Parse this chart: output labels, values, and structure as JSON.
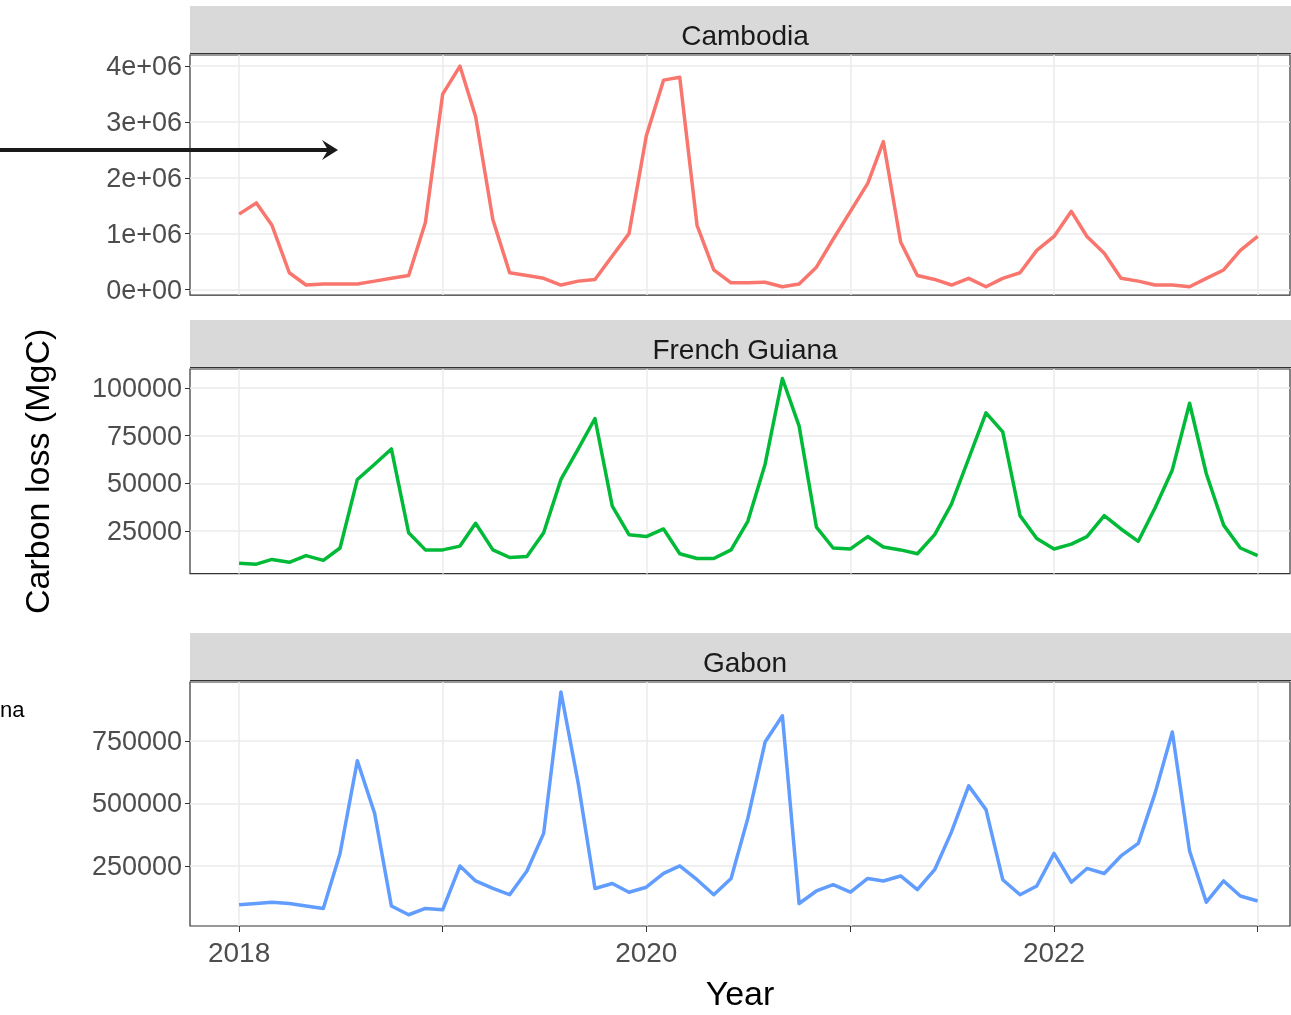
{
  "chart_data": [
    {
      "type": "line",
      "title": "Cambodia",
      "tick_labels": "y",
      "grid": true,
      "x": [
        "2018-01",
        "2018-02",
        "2018-03",
        "2018-04",
        "2018-05",
        "2018-06",
        "2018-07",
        "2018-08",
        "2018-09",
        "2018-10",
        "2018-11",
        "2018-12",
        "2019-01",
        "2019-02",
        "2019-03",
        "2019-04",
        "2019-05",
        "2019-06",
        "2019-07",
        "2019-08",
        "2019-09",
        "2019-10",
        "2019-11",
        "2019-12",
        "2020-01",
        "2020-02",
        "2020-03",
        "2020-04",
        "2020-05",
        "2020-06",
        "2020-07",
        "2020-08",
        "2020-09",
        "2020-10",
        "2020-11",
        "2020-12",
        "2021-01",
        "2021-02",
        "2021-03",
        "2021-04",
        "2021-05",
        "2021-06",
        "2021-07",
        "2021-08",
        "2021-09",
        "2021-10",
        "2021-11",
        "2021-12",
        "2022-01",
        "2022-02",
        "2022-03",
        "2022-04",
        "2022-05",
        "2022-06",
        "2022-07",
        "2022-08",
        "2022-09",
        "2022-10",
        "2022-11",
        "2022-12",
        "2023-01"
      ],
      "xlim": [
        "2017-10-05",
        "2023-02-28"
      ],
      "xticks": [
        {
          "value": "2018",
          "label": null
        },
        {
          "value": "2019",
          "label": null
        },
        {
          "value": "2020",
          "label": null
        },
        {
          "value": "2021",
          "label": null
        },
        {
          "value": "2022",
          "label": null
        },
        {
          "value": "2023",
          "label": null
        }
      ],
      "ylim": [
        -100000,
        4200000
      ],
      "yticks": [
        {
          "value": 0,
          "label": "0e+00"
        },
        {
          "value": 1000000,
          "label": "1e+06"
        },
        {
          "value": 2000000,
          "label": "2e+06"
        },
        {
          "value": 3000000,
          "label": "3e+06"
        },
        {
          "value": 4000000,
          "label": "4e+06"
        }
      ],
      "series": [
        {
          "color": "#f8766d",
          "values": [
            1350000,
            1550000,
            1150000,
            300000,
            80000,
            100000,
            100000,
            100000,
            150000,
            200000,
            250000,
            1200000,
            3500000,
            4000000,
            3100000,
            1250000,
            300000,
            250000,
            200000,
            80000,
            150000,
            180000,
            600000,
            1000000,
            2750000,
            3750000,
            3800000,
            1150000,
            350000,
            120000,
            120000,
            130000,
            50000,
            100000,
            400000,
            900000,
            1400000,
            1900000,
            2650000,
            850000,
            250000,
            180000,
            80000,
            200000,
            50000,
            200000,
            300000,
            700000,
            950000,
            1400000,
            950000,
            650000,
            200000,
            150000,
            80000,
            80000,
            50000,
            200000,
            350000,
            700000,
            950000
          ]
        }
      ]
    },
    {
      "type": "line",
      "title": "French Guiana",
      "ylabel": "Carbon loss (MgC)",
      "tick_labels": "y",
      "grid": true,
      "x": [
        "2018-01",
        "2018-02",
        "2018-03",
        "2018-04",
        "2018-05",
        "2018-06",
        "2018-07",
        "2018-08",
        "2018-09",
        "2018-10",
        "2018-11",
        "2018-12",
        "2019-01",
        "2019-02",
        "2019-03",
        "2019-04",
        "2019-05",
        "2019-06",
        "2019-07",
        "2019-08",
        "2019-09",
        "2019-10",
        "2019-11",
        "2019-12",
        "2020-01",
        "2020-02",
        "2020-03",
        "2020-04",
        "2020-05",
        "2020-06",
        "2020-07",
        "2020-08",
        "2020-09",
        "2020-10",
        "2020-11",
        "2020-12",
        "2021-01",
        "2021-02",
        "2021-03",
        "2021-04",
        "2021-05",
        "2021-06",
        "2021-07",
        "2021-08",
        "2021-09",
        "2021-10",
        "2021-11",
        "2021-12",
        "2022-01",
        "2022-02",
        "2022-03",
        "2022-04",
        "2022-05",
        "2022-06",
        "2022-07",
        "2022-08",
        "2022-09",
        "2022-10",
        "2022-11",
        "2022-12",
        "2023-01"
      ],
      "xlim": [
        "2017-10-05",
        "2023-02-28"
      ],
      "xticks": [
        {
          "value": "2018",
          "label": null
        },
        {
          "value": "2019",
          "label": null
        },
        {
          "value": "2020",
          "label": null
        },
        {
          "value": "2021",
          "label": null
        },
        {
          "value": "2022",
          "label": null
        },
        {
          "value": "2023",
          "label": null
        }
      ],
      "ylim": [
        2500,
        110000
      ],
      "yticks": [
        25000,
        50000,
        75000,
        100000
      ],
      "series": [
        {
          "color": "#00ba38",
          "values": [
            8000,
            7500,
            10000,
            8500,
            12000,
            9500,
            16000,
            52000,
            60000,
            68000,
            24000,
            15000,
            15000,
            17000,
            29000,
            15000,
            11000,
            11500,
            24000,
            52000,
            68000,
            84000,
            38000,
            23000,
            22000,
            26000,
            13000,
            10500,
            10500,
            15000,
            30000,
            60000,
            105000,
            80000,
            27000,
            16000,
            15500,
            22000,
            16500,
            15000,
            13000,
            23000,
            39000,
            63000,
            87000,
            77000,
            33000,
            21000,
            15500,
            18000,
            22000,
            33000,
            26000,
            19500,
            37000,
            57000,
            92000,
            55000,
            28000,
            16000,
            12000
          ]
        }
      ]
    },
    {
      "type": "line",
      "title": "Gabon",
      "xlabel": "Year",
      "grid": true,
      "annotations": [
        "na"
      ],
      "x": [
        "2018-01",
        "2018-02",
        "2018-03",
        "2018-04",
        "2018-05",
        "2018-06",
        "2018-07",
        "2018-08",
        "2018-09",
        "2018-10",
        "2018-11",
        "2018-12",
        "2019-01",
        "2019-02",
        "2019-03",
        "2019-04",
        "2019-05",
        "2019-06",
        "2019-07",
        "2019-08",
        "2019-09",
        "2019-10",
        "2019-11",
        "2019-12",
        "2020-01",
        "2020-02",
        "2020-03",
        "2020-04",
        "2020-05",
        "2020-06",
        "2020-07",
        "2020-08",
        "2020-09",
        "2020-10",
        "2020-11",
        "2020-12",
        "2021-01",
        "2021-02",
        "2021-03",
        "2021-04",
        "2021-05",
        "2021-06",
        "2021-07",
        "2021-08",
        "2021-09",
        "2021-10",
        "2021-11",
        "2021-12",
        "2022-01",
        "2022-02",
        "2022-03",
        "2022-04",
        "2022-05",
        "2022-06",
        "2022-07",
        "2022-08",
        "2022-09",
        "2022-10",
        "2022-11",
        "2022-12",
        "2023-01"
      ],
      "xlim": [
        "2017-10-05",
        "2023-02-28"
      ],
      "xticks": [
        {
          "value": "2018",
          "label": "2018"
        },
        {
          "value": "2019",
          "label": null
        },
        {
          "value": "2020",
          "label": "2020"
        },
        {
          "value": "2021",
          "label": null
        },
        {
          "value": "2022",
          "label": "2022"
        },
        {
          "value": "2023",
          "label": null
        }
      ],
      "ylim": [
        10000,
        985000
      ],
      "yticks": [
        250000,
        500000,
        750000
      ],
      "series": [
        {
          "color": "#619cff",
          "values": [
            95000,
            100000,
            105000,
            100000,
            90000,
            80000,
            300000,
            670000,
            460000,
            90000,
            55000,
            80000,
            75000,
            250000,
            190000,
            160000,
            135000,
            230000,
            380000,
            945000,
            580000,
            160000,
            180000,
            145000,
            165000,
            220000,
            250000,
            195000,
            135000,
            200000,
            440000,
            745000,
            850000,
            100000,
            150000,
            175000,
            145000,
            200000,
            190000,
            210000,
            155000,
            235000,
            385000,
            570000,
            475000,
            195000,
            135000,
            170000,
            300000,
            185000,
            240000,
            220000,
            290000,
            340000,
            540000,
            785000,
            310000,
            105000,
            190000,
            130000,
            110000
          ]
        }
      ]
    }
  ]
}
